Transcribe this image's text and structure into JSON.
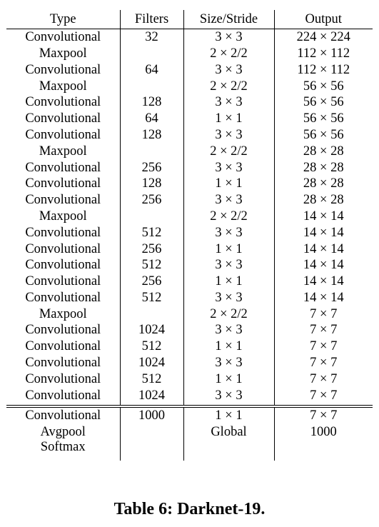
{
  "table": {
    "headers": [
      "Type",
      "Filters",
      "Size/Stride",
      "Output"
    ],
    "rows": [
      [
        "Convolutional",
        "32",
        "3 × 3",
        "224 × 224"
      ],
      [
        "Maxpool",
        "",
        "2 × 2/2",
        "112 × 112"
      ],
      [
        "Convolutional",
        "64",
        "3 × 3",
        "112 × 112"
      ],
      [
        "Maxpool",
        "",
        "2 × 2/2",
        "56 × 56"
      ],
      [
        "Convolutional",
        "128",
        "3 × 3",
        "56 × 56"
      ],
      [
        "Convolutional",
        "64",
        "1 × 1",
        "56 × 56"
      ],
      [
        "Convolutional",
        "128",
        "3 × 3",
        "56 × 56"
      ],
      [
        "Maxpool",
        "",
        "2 × 2/2",
        "28 × 28"
      ],
      [
        "Convolutional",
        "256",
        "3 × 3",
        "28 × 28"
      ],
      [
        "Convolutional",
        "128",
        "1 × 1",
        "28 × 28"
      ],
      [
        "Convolutional",
        "256",
        "3 × 3",
        "28 × 28"
      ],
      [
        "Maxpool",
        "",
        "2 × 2/2",
        "14 × 14"
      ],
      [
        "Convolutional",
        "512",
        "3 × 3",
        "14 × 14"
      ],
      [
        "Convolutional",
        "256",
        "1 × 1",
        "14 × 14"
      ],
      [
        "Convolutional",
        "512",
        "3 × 3",
        "14 × 14"
      ],
      [
        "Convolutional",
        "256",
        "1 × 1",
        "14 × 14"
      ],
      [
        "Convolutional",
        "512",
        "3 × 3",
        "14 × 14"
      ],
      [
        "Maxpool",
        "",
        "2 × 2/2",
        "7 × 7"
      ],
      [
        "Convolutional",
        "1024",
        "3 × 3",
        "7 × 7"
      ],
      [
        "Convolutional",
        "512",
        "1 × 1",
        "7 × 7"
      ],
      [
        "Convolutional",
        "1024",
        "3 × 3",
        "7 × 7"
      ],
      [
        "Convolutional",
        "512",
        "1 × 1",
        "7 × 7"
      ],
      [
        "Convolutional",
        "1024",
        "3 × 3",
        "7 × 7"
      ]
    ],
    "tail_rows": [
      [
        "Convolutional",
        "1000",
        "1 × 1",
        "7 × 7"
      ],
      [
        "Avgpool",
        "",
        "Global",
        "1000"
      ],
      [
        "Softmax",
        "",
        "",
        ""
      ]
    ]
  },
  "caption": "Table 6: Darknet-19."
}
